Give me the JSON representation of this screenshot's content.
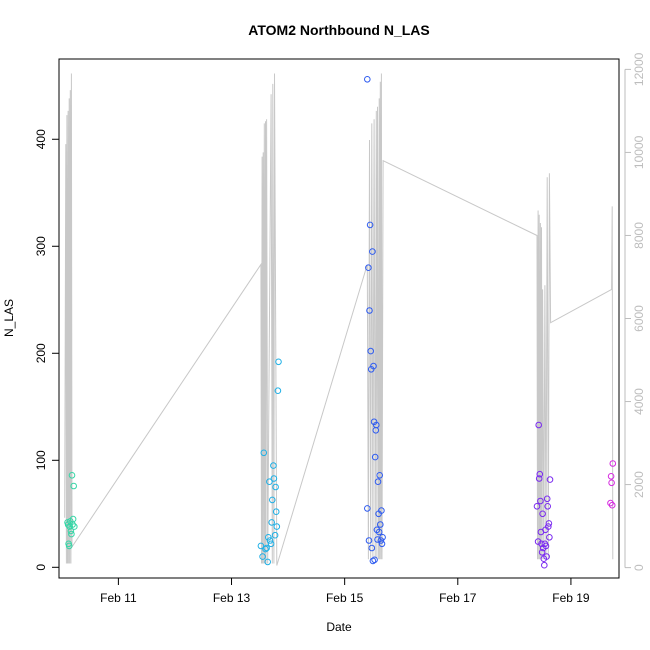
{
  "chart_data": {
    "type": "scatter",
    "title": "ATOM2 Northbound N_LAS",
    "xlabel": "Date",
    "ylabel": "N_LAS",
    "y2label": "",
    "xlim_days": [
      9.95,
      19.85
    ],
    "ylim": [
      -10,
      475
    ],
    "y2lim": [
      -250,
      12250
    ],
    "x_ticks": [
      {
        "day": 11,
        "label": "Feb 11"
      },
      {
        "day": 13,
        "label": "Feb 13"
      },
      {
        "day": 15,
        "label": "Feb 15"
      },
      {
        "day": 17,
        "label": "Feb 17"
      },
      {
        "day": 19,
        "label": "Feb 19"
      }
    ],
    "y_ticks": [
      0,
      100,
      200,
      300,
      400
    ],
    "y2_ticks": [
      0,
      2000,
      4000,
      6000,
      8000,
      10000,
      12000
    ],
    "grid": false,
    "colors": {
      "line": "#c8c8c8",
      "right_axis": "#bdbdbd",
      "axis": "#000000"
    },
    "scatter_points": [
      {
        "x": 10.1,
        "y": 42,
        "c": "#35d6a6"
      },
      {
        "x": 10.11,
        "y": 40,
        "c": "#35d6a6"
      },
      {
        "x": 10.12,
        "y": 22,
        "c": "#35d6a6"
      },
      {
        "x": 10.13,
        "y": 20,
        "c": "#35d6a6"
      },
      {
        "x": 10.14,
        "y": 38,
        "c": "#35d6a6"
      },
      {
        "x": 10.15,
        "y": 43,
        "c": "#35d6a6"
      },
      {
        "x": 10.16,
        "y": 34,
        "c": "#35d6a6"
      },
      {
        "x": 10.17,
        "y": 31,
        "c": "#35d6a6"
      },
      {
        "x": 10.18,
        "y": 86,
        "c": "#35d6a6"
      },
      {
        "x": 10.19,
        "y": 40,
        "c": "#35d6a6"
      },
      {
        "x": 10.2,
        "y": 45,
        "c": "#35d6a6"
      },
      {
        "x": 10.21,
        "y": 76,
        "c": "#35d6a6"
      },
      {
        "x": 10.22,
        "y": 38,
        "c": "#35d6a6"
      },
      {
        "x": 13.52,
        "y": 20,
        "c": "#1fb0e6"
      },
      {
        "x": 13.55,
        "y": 10,
        "c": "#1fb0e6"
      },
      {
        "x": 13.57,
        "y": 107,
        "c": "#1fb0e6"
      },
      {
        "x": 13.6,
        "y": 17,
        "c": "#1fb0e6"
      },
      {
        "x": 13.62,
        "y": 18,
        "c": "#1fb0e6"
      },
      {
        "x": 13.64,
        "y": 5,
        "c": "#1fb0e6"
      },
      {
        "x": 13.65,
        "y": 28,
        "c": "#1fb0e6"
      },
      {
        "x": 13.67,
        "y": 80,
        "c": "#1fb0e6"
      },
      {
        "x": 13.68,
        "y": 25,
        "c": "#1fb0e6"
      },
      {
        "x": 13.7,
        "y": 22,
        "c": "#1fb0e6"
      },
      {
        "x": 13.71,
        "y": 42,
        "c": "#1fb0e6"
      },
      {
        "x": 13.72,
        "y": 63,
        "c": "#1fb0e6"
      },
      {
        "x": 13.74,
        "y": 95,
        "c": "#1fb0e6"
      },
      {
        "x": 13.75,
        "y": 83,
        "c": "#1fb0e6"
      },
      {
        "x": 13.77,
        "y": 30,
        "c": "#1fb0e6"
      },
      {
        "x": 13.78,
        "y": 75,
        "c": "#1fb0e6"
      },
      {
        "x": 13.79,
        "y": 52,
        "c": "#1fb0e6"
      },
      {
        "x": 13.8,
        "y": 38,
        "c": "#1fb0e6"
      },
      {
        "x": 13.82,
        "y": 165,
        "c": "#1fb0e6"
      },
      {
        "x": 13.83,
        "y": 192,
        "c": "#1fb0e6"
      },
      {
        "x": 15.4,
        "y": 456,
        "c": "#2f5cf0"
      },
      {
        "x": 15.4,
        "y": 55,
        "c": "#2f5cf0"
      },
      {
        "x": 15.42,
        "y": 280,
        "c": "#2f5cf0"
      },
      {
        "x": 15.43,
        "y": 25,
        "c": "#2f5cf0"
      },
      {
        "x": 15.44,
        "y": 240,
        "c": "#2f5cf0"
      },
      {
        "x": 15.45,
        "y": 320,
        "c": "#2f5cf0"
      },
      {
        "x": 15.46,
        "y": 202,
        "c": "#2f5cf0"
      },
      {
        "x": 15.47,
        "y": 185,
        "c": "#2f5cf0"
      },
      {
        "x": 15.48,
        "y": 18,
        "c": "#2f5cf0"
      },
      {
        "x": 15.49,
        "y": 295,
        "c": "#2f5cf0"
      },
      {
        "x": 15.5,
        "y": 6,
        "c": "#2f5cf0"
      },
      {
        "x": 15.51,
        "y": 188,
        "c": "#2f5cf0"
      },
      {
        "x": 15.52,
        "y": 136,
        "c": "#2f5cf0"
      },
      {
        "x": 15.53,
        "y": 7,
        "c": "#2f5cf0"
      },
      {
        "x": 15.54,
        "y": 103,
        "c": "#2f5cf0"
      },
      {
        "x": 15.55,
        "y": 128,
        "c": "#2f5cf0"
      },
      {
        "x": 15.56,
        "y": 133,
        "c": "#2f5cf0"
      },
      {
        "x": 15.57,
        "y": 35,
        "c": "#2f5cf0"
      },
      {
        "x": 15.58,
        "y": 26,
        "c": "#2f5cf0"
      },
      {
        "x": 15.59,
        "y": 80,
        "c": "#2f5cf0"
      },
      {
        "x": 15.6,
        "y": 50,
        "c": "#2f5cf0"
      },
      {
        "x": 15.61,
        "y": 33,
        "c": "#2f5cf0"
      },
      {
        "x": 15.62,
        "y": 86,
        "c": "#2f5cf0"
      },
      {
        "x": 15.63,
        "y": 40,
        "c": "#2f5cf0"
      },
      {
        "x": 15.64,
        "y": 25,
        "c": "#2f5cf0"
      },
      {
        "x": 15.65,
        "y": 53,
        "c": "#2f5cf0"
      },
      {
        "x": 15.66,
        "y": 22,
        "c": "#2f5cf0"
      },
      {
        "x": 15.67,
        "y": 28,
        "c": "#2f5cf0"
      },
      {
        "x": 18.4,
        "y": 57,
        "c": "#7a2af0"
      },
      {
        "x": 18.42,
        "y": 24,
        "c": "#7a2af0"
      },
      {
        "x": 18.43,
        "y": 133,
        "c": "#7a2af0"
      },
      {
        "x": 18.44,
        "y": 83,
        "c": "#7a2af0"
      },
      {
        "x": 18.45,
        "y": 87,
        "c": "#7a2af0"
      },
      {
        "x": 18.46,
        "y": 62,
        "c": "#7a2af0"
      },
      {
        "x": 18.47,
        "y": 33,
        "c": "#7a2af0"
      },
      {
        "x": 18.48,
        "y": 22,
        "c": "#7a2af0"
      },
      {
        "x": 18.49,
        "y": 14,
        "c": "#7a2af0"
      },
      {
        "x": 18.5,
        "y": 50,
        "c": "#7a2af0"
      },
      {
        "x": 18.51,
        "y": 18,
        "c": "#7a2af0"
      },
      {
        "x": 18.52,
        "y": 8,
        "c": "#7a2af0"
      },
      {
        "x": 18.53,
        "y": 2,
        "c": "#7a2af0"
      },
      {
        "x": 18.54,
        "y": 22,
        "c": "#7a2af0"
      },
      {
        "x": 18.55,
        "y": 35,
        "c": "#7a2af0"
      },
      {
        "x": 18.56,
        "y": 20,
        "c": "#7a2af0"
      },
      {
        "x": 18.57,
        "y": 10,
        "c": "#7a2af0"
      },
      {
        "x": 18.58,
        "y": 64,
        "c": "#7a2af0"
      },
      {
        "x": 18.59,
        "y": 57,
        "c": "#7a2af0"
      },
      {
        "x": 18.6,
        "y": 38,
        "c": "#7a2af0"
      },
      {
        "x": 18.61,
        "y": 41,
        "c": "#7a2af0"
      },
      {
        "x": 18.62,
        "y": 28,
        "c": "#7a2af0"
      },
      {
        "x": 18.63,
        "y": 82,
        "c": "#7a2af0"
      },
      {
        "x": 19.7,
        "y": 60,
        "c": "#d62ae0"
      },
      {
        "x": 19.71,
        "y": 85,
        "c": "#d62ae0"
      },
      {
        "x": 19.72,
        "y": 79,
        "c": "#d62ae0"
      },
      {
        "x": 19.73,
        "y": 58,
        "c": "#d62ae0"
      },
      {
        "x": 19.74,
        "y": 97,
        "c": "#d62ae0"
      }
    ],
    "line_points": [
      [
        10.05,
        1200
      ],
      [
        10.07,
        10200
      ],
      [
        10.08,
        100
      ],
      [
        10.09,
        10900
      ],
      [
        10.1,
        100
      ],
      [
        10.11,
        11000
      ],
      [
        10.12,
        100
      ],
      [
        10.13,
        11300
      ],
      [
        10.14,
        100
      ],
      [
        10.15,
        11500
      ],
      [
        10.16,
        100
      ],
      [
        10.17,
        11900
      ],
      [
        10.18,
        500
      ],
      [
        13.52,
        7300
      ],
      [
        13.53,
        100
      ],
      [
        13.54,
        9900
      ],
      [
        13.55,
        100
      ],
      [
        13.56,
        10000
      ],
      [
        13.57,
        100
      ],
      [
        13.58,
        10700
      ],
      [
        13.59,
        100
      ],
      [
        13.6,
        10750
      ],
      [
        13.61,
        100
      ],
      [
        13.62,
        10800
      ],
      [
        13.64,
        100
      ],
      [
        13.7,
        11400
      ],
      [
        13.72,
        100
      ],
      [
        13.73,
        11650
      ],
      [
        13.75,
        100
      ],
      [
        13.76,
        11900
      ],
      [
        13.8,
        50
      ],
      [
        15.4,
        7300
      ],
      [
        15.42,
        200
      ],
      [
        15.44,
        10300
      ],
      [
        15.46,
        200
      ],
      [
        15.48,
        10700
      ],
      [
        15.5,
        200
      ],
      [
        15.52,
        10800
      ],
      [
        15.54,
        200
      ],
      [
        15.56,
        11000
      ],
      [
        15.57,
        200
      ],
      [
        15.58,
        11100
      ],
      [
        15.6,
        200
      ],
      [
        15.61,
        11300
      ],
      [
        15.62,
        200
      ],
      [
        15.63,
        11700
      ],
      [
        15.64,
        200
      ],
      [
        15.65,
        11900
      ],
      [
        15.66,
        200
      ],
      [
        15.68,
        9800
      ],
      [
        18.4,
        8000
      ],
      [
        18.41,
        200
      ],
      [
        18.42,
        8600
      ],
      [
        18.43,
        200
      ],
      [
        18.44,
        8500
      ],
      [
        18.45,
        200
      ],
      [
        18.46,
        8300
      ],
      [
        18.47,
        200
      ],
      [
        18.48,
        8200
      ],
      [
        18.49,
        200
      ],
      [
        18.5,
        6700
      ],
      [
        18.52,
        200
      ],
      [
        18.54,
        6800
      ],
      [
        18.56,
        200
      ],
      [
        18.58,
        9400
      ],
      [
        18.6,
        200
      ],
      [
        18.62,
        9500
      ],
      [
        18.64,
        5900
      ],
      [
        19.72,
        6700
      ],
      [
        19.73,
        8700
      ],
      [
        19.74,
        200
      ]
    ]
  }
}
